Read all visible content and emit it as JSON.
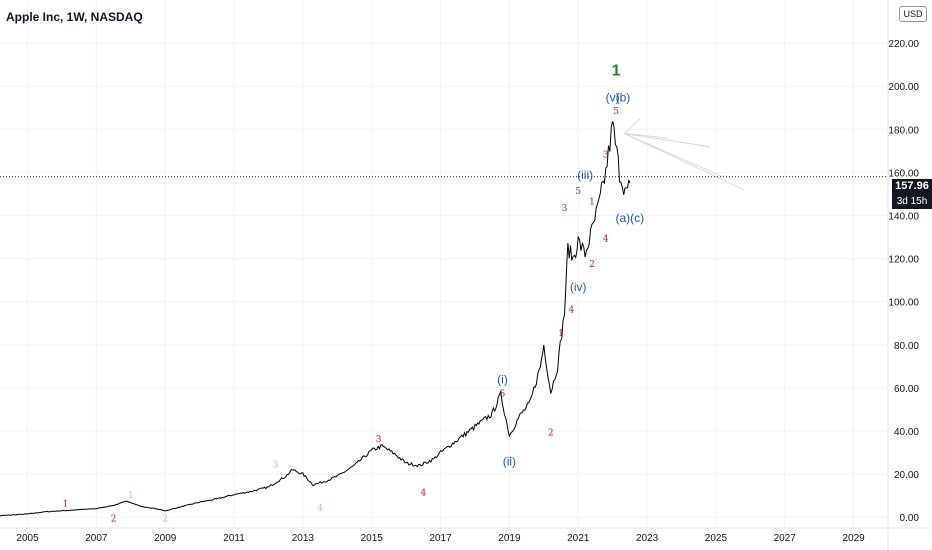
{
  "header": {
    "title": "Apple Inc, 1W, NASDAQ",
    "currency": "USD"
  },
  "last_price": {
    "value": "157.96",
    "countdown": "3d 15h"
  },
  "colors": {
    "grid": "#f0f3fa",
    "price_line": "#000000",
    "wave_primary": "#1e5bb8",
    "wave_minor": "#b2183a",
    "wave_faded": "#e6a9b4",
    "wave_faded_gray": "#c9b8b8",
    "degree_one": "#2e7d32",
    "axis_text": "#131722"
  },
  "chart_data": {
    "type": "line",
    "ylim": [
      -5,
      240
    ],
    "xlim": [
      2004.2,
      2030.0
    ],
    "y_ticks": [
      0,
      20,
      40,
      60,
      80,
      100,
      120,
      140,
      160,
      180,
      200,
      220
    ],
    "y_tick_labels": [
      "0.00",
      "20.00",
      "40.00",
      "60.00",
      "80.00",
      "100.00",
      "120.00",
      "140.00",
      "160.00",
      "180.00",
      "200.00",
      "220.00"
    ],
    "x_ticks": [
      2005,
      2007,
      2009,
      2011,
      2013,
      2015,
      2017,
      2019,
      2021,
      2023,
      2025,
      2027,
      2029
    ],
    "x_tick_labels": [
      "2005",
      "2007",
      "2009",
      "2011",
      "2013",
      "2015",
      "2017",
      "2019",
      "2021",
      "2023",
      "2025",
      "2027",
      "2029"
    ],
    "series": [
      {
        "x": [
          2004.0,
          2004.5,
          2005.0,
          2005.5,
          2006.0,
          2006.5,
          2007.0,
          2007.5,
          2007.9,
          2008.3,
          2008.7,
          2009.0,
          2009.5,
          2010.0,
          2010.5,
          2011.0,
          2011.5,
          2012.0,
          2012.5,
          2012.7,
          2013.0,
          2013.3,
          2013.7,
          2014.0,
          2014.5,
          2015.0,
          2015.3,
          2015.7,
          2016.0,
          2016.4,
          2016.8,
          2017.0,
          2017.5,
          2018.0,
          2018.5,
          2018.75,
          2019.0,
          2019.3,
          2019.6,
          2019.9,
          2020.0,
          2020.2,
          2020.4,
          2020.6,
          2020.7,
          2020.85,
          2021.0,
          2021.2,
          2021.4,
          2021.6,
          2021.8,
          2022.0,
          2022.2,
          2022.4,
          2022.5
        ],
        "y": [
          0.5,
          1,
          1.5,
          2.5,
          3,
          3.5,
          4,
          5.5,
          7.5,
          5,
          4,
          3,
          5,
          7,
          8.5,
          10.5,
          12,
          14,
          19,
          22,
          20,
          15,
          17,
          19,
          24,
          31,
          33,
          29,
          25,
          24,
          27,
          30,
          36,
          42,
          48,
          57,
          38,
          47,
          53,
          70,
          80,
          58,
          70,
          95,
          125,
          120,
          128,
          122,
          133,
          145,
          160,
          182,
          160,
          150,
          155
        ]
      }
    ],
    "annotations": [
      {
        "text": "1",
        "x": 2006.1,
        "y": 5,
        "style": "minor"
      },
      {
        "text": "2",
        "x": 2007.5,
        "y": -2,
        "style": "minor"
      },
      {
        "text": "1",
        "x": 2008.0,
        "y": 9,
        "style": "faded"
      },
      {
        "text": "2",
        "x": 2009.0,
        "y": -2,
        "style": "faded"
      },
      {
        "text": "3",
        "x": 2012.2,
        "y": 23,
        "style": "faded_gray"
      },
      {
        "text": "4",
        "x": 2013.5,
        "y": 3,
        "style": "faded"
      },
      {
        "text": "3",
        "x": 2015.2,
        "y": 35,
        "style": "minor"
      },
      {
        "text": "4",
        "x": 2016.5,
        "y": 10,
        "style": "minor"
      },
      {
        "text": "(i)",
        "x": 2018.8,
        "y": 62,
        "style": "primary"
      },
      {
        "text": "5",
        "x": 2018.8,
        "y": 56,
        "style": "minor"
      },
      {
        "text": "(ii)",
        "x": 2019.0,
        "y": 24,
        "style": "primary"
      },
      {
        "text": "2",
        "x": 2020.2,
        "y": 38,
        "style": "minor"
      },
      {
        "text": "1",
        "x": 2020.5,
        "y": 84,
        "style": "minor"
      },
      {
        "text": "4",
        "x": 2020.8,
        "y": 95,
        "style": "minor"
      },
      {
        "text": "3",
        "x": 2020.6,
        "y": 142,
        "style": "minor"
      },
      {
        "text": "(iv)",
        "x": 2021.0,
        "y": 105,
        "style": "primary"
      },
      {
        "text": "2",
        "x": 2021.4,
        "y": 116,
        "style": "minor"
      },
      {
        "text": "5",
        "x": 2021.0,
        "y": 150,
        "style": "minor"
      },
      {
        "text": "(iii)",
        "x": 2021.2,
        "y": 157,
        "style": "primary"
      },
      {
        "text": "1",
        "x": 2021.4,
        "y": 145,
        "style": "minor"
      },
      {
        "text": "4",
        "x": 2021.8,
        "y": 128,
        "style": "minor"
      },
      {
        "text": "3",
        "x": 2021.8,
        "y": 167,
        "style": "minor"
      },
      {
        "text": "5",
        "x": 2022.1,
        "y": 187,
        "style": "minor"
      },
      {
        "text": "(v)",
        "x": 2022.0,
        "y": 193,
        "style": "primary"
      },
      {
        "text": "(b)",
        "x": 2022.3,
        "y": 193,
        "style": "primary"
      },
      {
        "text": "(a)(c)",
        "x": 2022.5,
        "y": 137,
        "style": "primary"
      },
      {
        "text": "1",
        "x": 2022.1,
        "y": 205,
        "style": "degree"
      }
    ]
  }
}
